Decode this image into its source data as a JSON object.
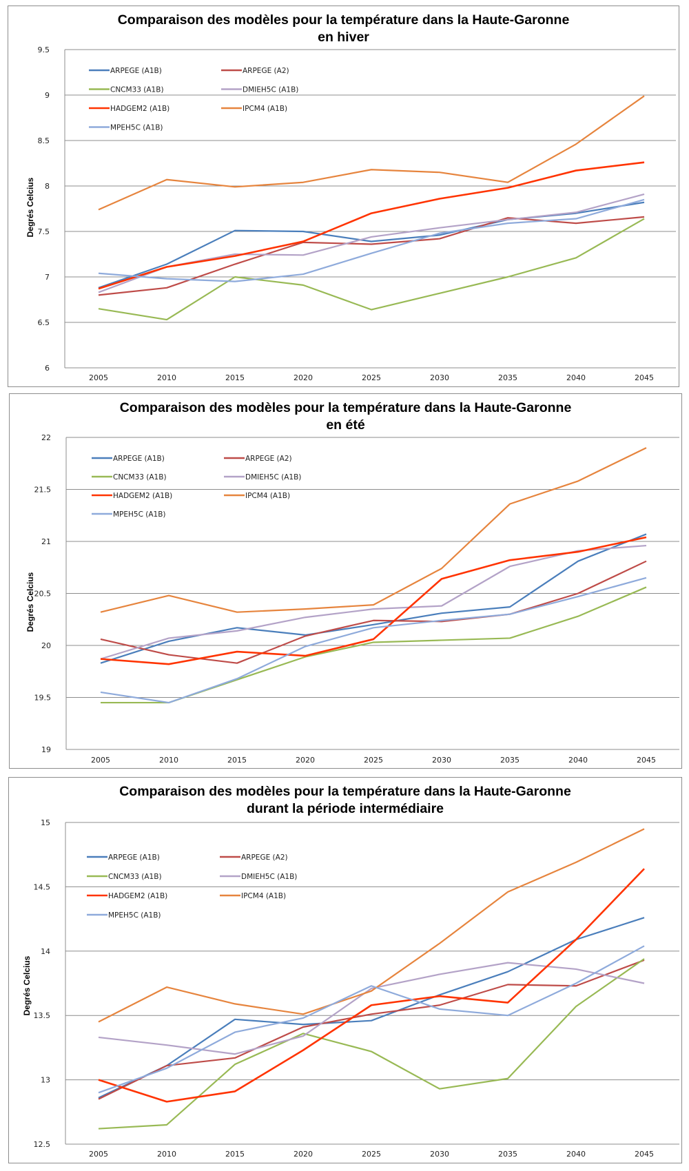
{
  "series_meta": [
    {
      "name": "ARPEGE (A1B)",
      "color": "#4a7ebb"
    },
    {
      "name": "ARPEGE (A2)",
      "color": "#be4b48"
    },
    {
      "name": "CNCM33 (A1B)",
      "color": "#98b954"
    },
    {
      "name": "DMIEH5C (A1B)",
      "color": "#b3a2c7"
    },
    {
      "name": "HADGEM2 (A1B)",
      "color": "#ff3300"
    },
    {
      "name": "IPCM4 (A1B)",
      "color": "#e6843d"
    },
    {
      "name": "MPEH5C (A1B)",
      "color": "#8eaadb"
    }
  ],
  "chart_data": [
    {
      "type": "line",
      "title": "Comparaison des modèles pour la température  dans la Haute-Garonne",
      "subtitle": "en hiver",
      "xlabel": "",
      "ylabel": "Degrés Celcius",
      "x": [
        "2005",
        "2010",
        "2015",
        "2020",
        "2025",
        "2030",
        "2035",
        "2040",
        "2045"
      ],
      "ylim": [
        6,
        9.5
      ],
      "yticks": [
        "6",
        "6.5",
        "7",
        "7.5",
        "8",
        "8.5",
        "9",
        "9.5"
      ],
      "ytick_values": [
        6,
        6.5,
        7,
        7.5,
        8,
        8.5,
        9,
        9.5
      ],
      "grid": true,
      "legend": "top-left inside, 2 columns",
      "series": [
        {
          "name": "ARPEGE (A1B)",
          "values": [
            6.88,
            7.14,
            7.51,
            7.5,
            7.39,
            7.46,
            7.63,
            7.7,
            7.82
          ]
        },
        {
          "name": "ARPEGE (A2)",
          "values": [
            6.8,
            6.88,
            7.14,
            7.38,
            7.36,
            7.42,
            7.65,
            7.59,
            7.66
          ]
        },
        {
          "name": "CNCM33 (A1B)",
          "values": [
            6.65,
            6.53,
            7.0,
            6.91,
            6.64,
            6.82,
            7.0,
            7.21,
            7.64
          ]
        },
        {
          "name": "DMIEH5C (A1B)",
          "values": [
            6.83,
            7.11,
            7.25,
            7.24,
            7.44,
            7.54,
            7.63,
            7.71,
            7.91
          ]
        },
        {
          "name": "HADGEM2 (A1B)",
          "values": [
            6.87,
            7.11,
            7.23,
            7.39,
            7.7,
            7.86,
            7.98,
            8.17,
            8.26
          ]
        },
        {
          "name": "IPCM4 (A1B)",
          "values": [
            7.74,
            8.07,
            7.99,
            8.04,
            8.18,
            8.15,
            8.04,
            8.46,
            8.99
          ]
        },
        {
          "name": "MPEH5C (A1B)",
          "values": [
            7.04,
            6.98,
            6.95,
            7.03,
            7.26,
            7.48,
            7.59,
            7.64,
            7.85
          ]
        }
      ]
    },
    {
      "type": "line",
      "title": "Comparaison des modèles pour la température  dans la Haute-Garonne",
      "subtitle": "en été",
      "xlabel": "",
      "ylabel": "Degrés Celcius",
      "x": [
        "2005",
        "2010",
        "2015",
        "2020",
        "2025",
        "2030",
        "2035",
        "2040",
        "2045"
      ],
      "ylim": [
        19,
        22
      ],
      "yticks": [
        "19",
        "19.5",
        "20",
        "20.5",
        "21",
        "21.5",
        "22"
      ],
      "ytick_values": [
        19,
        19.5,
        20,
        20.5,
        21,
        21.5,
        22
      ],
      "grid": true,
      "legend": "top-left inside, 2 columns",
      "series": [
        {
          "name": "ARPEGE (A1B)",
          "values": [
            19.83,
            20.04,
            20.17,
            20.1,
            20.2,
            20.31,
            20.37,
            20.81,
            21.07
          ]
        },
        {
          "name": "ARPEGE (A2)",
          "values": [
            20.06,
            19.91,
            19.83,
            20.09,
            20.24,
            20.23,
            20.3,
            20.5,
            20.81
          ]
        },
        {
          "name": "CNCM33 (A1B)",
          "values": [
            19.45,
            19.45,
            19.67,
            19.89,
            20.03,
            20.05,
            20.07,
            20.28,
            20.56
          ]
        },
        {
          "name": "DMIEH5C (A1B)",
          "values": [
            19.87,
            20.07,
            20.14,
            20.27,
            20.35,
            20.38,
            20.76,
            20.91,
            20.96
          ]
        },
        {
          "name": "HADGEM2 (A1B)",
          "values": [
            19.87,
            19.82,
            19.94,
            19.9,
            20.06,
            20.64,
            20.82,
            20.9,
            21.04
          ]
        },
        {
          "name": "IPCM4 (A1B)",
          "values": [
            20.32,
            20.48,
            20.32,
            20.35,
            20.39,
            20.74,
            21.36,
            21.58,
            21.9
          ]
        },
        {
          "name": "MPEH5C (A1B)",
          "values": [
            19.55,
            19.45,
            19.68,
            19.99,
            20.17,
            20.24,
            20.3,
            20.47,
            20.65
          ]
        }
      ]
    },
    {
      "type": "line",
      "title": "Comparaison des modèles pour la température  dans la Haute-Garonne",
      "subtitle": "durant la période intermédiaire",
      "xlabel": "",
      "ylabel": "Degrés Celcius",
      "x": [
        "2005",
        "2010",
        "2015",
        "2020",
        "2025",
        "2030",
        "2035",
        "2040",
        "2045"
      ],
      "ylim": [
        12.5,
        15
      ],
      "yticks": [
        "12.5",
        "13",
        "13.5",
        "14",
        "14.5",
        "15"
      ],
      "ytick_values": [
        12.5,
        13,
        13.5,
        14,
        14.5,
        15
      ],
      "grid": true,
      "legend": "top-left inside, 2 columns",
      "series": [
        {
          "name": "ARPEGE (A1B)",
          "values": [
            12.86,
            13.11,
            13.47,
            13.43,
            13.46,
            13.66,
            13.84,
            14.09,
            14.26
          ]
        },
        {
          "name": "ARPEGE (A2)",
          "values": [
            12.85,
            13.11,
            13.17,
            13.41,
            13.51,
            13.58,
            13.74,
            13.73,
            13.93
          ]
        },
        {
          "name": "CNCM33 (A1B)",
          "values": [
            12.62,
            12.65,
            13.12,
            13.36,
            13.22,
            12.93,
            13.01,
            13.57,
            13.94
          ]
        },
        {
          "name": "DMIEH5C (A1B)",
          "values": [
            13.33,
            13.27,
            13.2,
            13.34,
            13.71,
            13.82,
            13.91,
            13.86,
            13.75
          ]
        },
        {
          "name": "HADGEM2 (A1B)",
          "values": [
            13.0,
            12.83,
            12.91,
            13.23,
            13.58,
            13.65,
            13.6,
            14.09,
            14.64
          ]
        },
        {
          "name": "IPCM4 (A1B)",
          "values": [
            13.45,
            13.72,
            13.59,
            13.51,
            13.69,
            14.06,
            14.46,
            14.69,
            14.95
          ]
        },
        {
          "name": "MPEH5C (A1B)",
          "values": [
            12.9,
            13.09,
            13.37,
            13.48,
            13.73,
            13.55,
            13.5,
            13.75,
            14.04
          ]
        }
      ]
    }
  ]
}
